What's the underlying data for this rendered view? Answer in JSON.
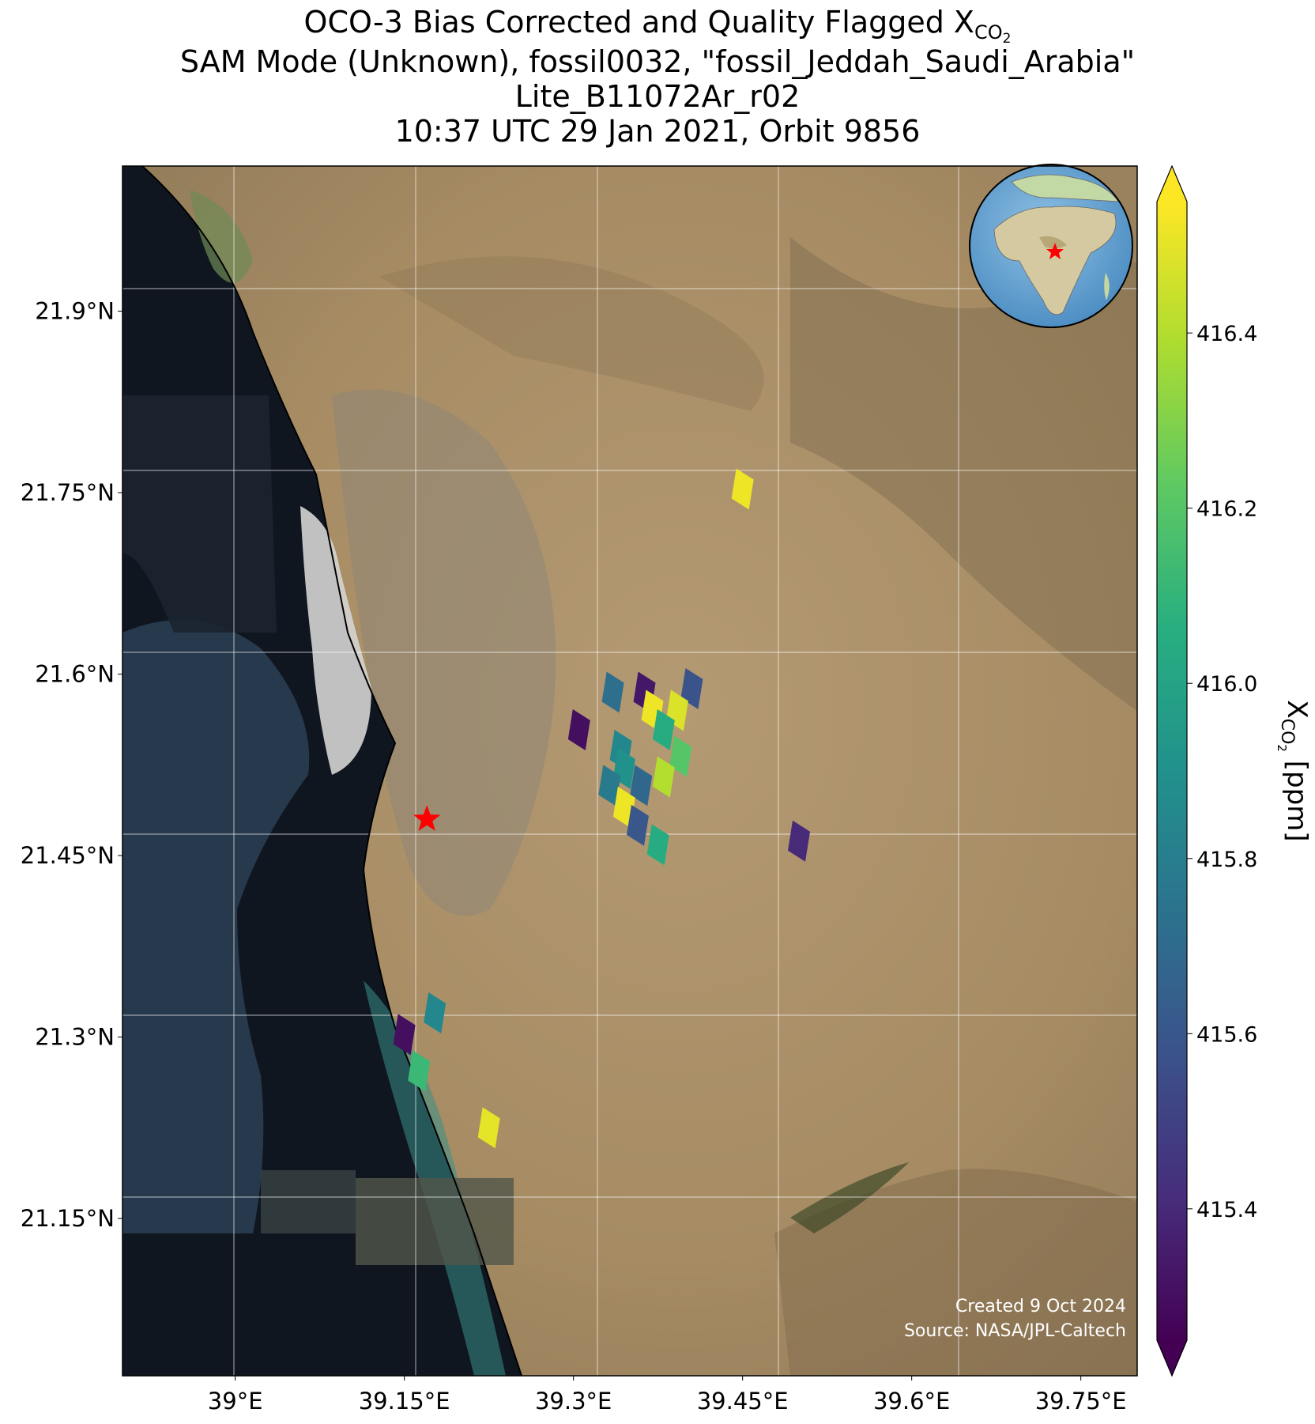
{
  "title": {
    "line1_prefix": "OCO-3 Bias Corrected and Quality Flagged X",
    "line1_sub": "CO",
    "line1_subsub": "2",
    "line2": "SAM Mode (Unknown), fossil0032, \"fossil_Jeddah_Saudi_Arabia\"",
    "line3": "Lite_B11072Ar_r02",
    "line4": "10:37 UTC 29 Jan 2021, Orbit 9856"
  },
  "map": {
    "lon_range": [
      38.9,
      39.8
    ],
    "lat_range": [
      21.02,
      22.02
    ],
    "x_ticks": [
      {
        "value": 39.0,
        "label": "39°E"
      },
      {
        "value": 39.15,
        "label": "39.15°E"
      },
      {
        "value": 39.3,
        "label": "39.3°E"
      },
      {
        "value": 39.45,
        "label": "39.45°E"
      },
      {
        "value": 39.6,
        "label": "39.6°E"
      },
      {
        "value": 39.75,
        "label": "39.75°E"
      }
    ],
    "y_ticks": [
      {
        "value": 21.9,
        "label": "21.9°N"
      },
      {
        "value": 21.75,
        "label": "21.75°N"
      },
      {
        "value": 21.6,
        "label": "21.6°N"
      },
      {
        "value": 21.45,
        "label": "21.45°N"
      },
      {
        "value": 21.3,
        "label": "21.3°N"
      },
      {
        "value": 21.15,
        "label": "21.15°N"
      }
    ],
    "target_marker": {
      "lon": 39.17,
      "lat": 21.48,
      "color": "#ff0000",
      "icon": "star-icon"
    },
    "credit_line1": "Created 9 Oct 2024",
    "credit_line2": "Source: NASA/JPL-Caltech",
    "inset": "globe-icon"
  },
  "colorbar": {
    "label_prefix": "X",
    "label_sub": "CO",
    "label_subsub": "2",
    "label_suffix": " [ppm]",
    "range": [
      415.25,
      416.55
    ],
    "ticks": [
      {
        "value": 415.4,
        "label": "415.4"
      },
      {
        "value": 415.6,
        "label": "415.6"
      },
      {
        "value": 415.8,
        "label": "415.8"
      },
      {
        "value": 416.0,
        "label": "416.0"
      },
      {
        "value": 416.2,
        "label": "416.2"
      },
      {
        "value": 416.4,
        "label": "416.4"
      }
    ],
    "colormap": "viridis",
    "extend": "both"
  },
  "chart_data": {
    "type": "scatter",
    "x_unit": "longitude (°E)",
    "y_unit": "latitude (°N)",
    "value_unit": "ppm",
    "points": [
      {
        "lon": 39.45,
        "lat": 21.753,
        "xco2": 416.52
      },
      {
        "lon": 39.335,
        "lat": 21.585,
        "xco2": 415.72
      },
      {
        "lon": 39.363,
        "lat": 21.585,
        "xco2": 415.33
      },
      {
        "lon": 39.405,
        "lat": 21.588,
        "xco2": 415.58
      },
      {
        "lon": 39.37,
        "lat": 21.57,
        "xco2": 416.52
      },
      {
        "lon": 39.392,
        "lat": 21.57,
        "xco2": 416.48
      },
      {
        "lon": 39.38,
        "lat": 21.554,
        "xco2": 416.05
      },
      {
        "lon": 39.305,
        "lat": 21.554,
        "xco2": 415.3
      },
      {
        "lon": 39.342,
        "lat": 21.537,
        "xco2": 415.85
      },
      {
        "lon": 39.345,
        "lat": 21.522,
        "xco2": 415.9
      },
      {
        "lon": 39.395,
        "lat": 21.532,
        "xco2": 416.2
      },
      {
        "lon": 39.38,
        "lat": 21.515,
        "xco2": 416.4
      },
      {
        "lon": 39.332,
        "lat": 21.508,
        "xco2": 415.78
      },
      {
        "lon": 39.36,
        "lat": 21.508,
        "xco2": 415.68
      },
      {
        "lon": 39.345,
        "lat": 21.49,
        "xco2": 416.52
      },
      {
        "lon": 39.357,
        "lat": 21.475,
        "xco2": 415.6
      },
      {
        "lon": 39.5,
        "lat": 21.462,
        "xco2": 415.4
      },
      {
        "lon": 39.375,
        "lat": 21.459,
        "xco2": 416.05
      },
      {
        "lon": 39.177,
        "lat": 21.32,
        "xco2": 415.85
      },
      {
        "lon": 39.15,
        "lat": 21.302,
        "xco2": 415.3
      },
      {
        "lon": 39.163,
        "lat": 21.272,
        "xco2": 416.12
      },
      {
        "lon": 39.225,
        "lat": 21.225,
        "xco2": 416.5
      }
    ]
  }
}
